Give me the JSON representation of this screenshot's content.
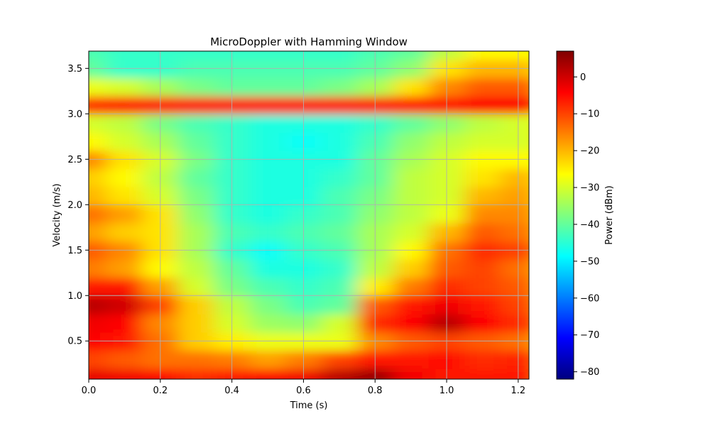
{
  "chart_data": {
    "type": "heatmap",
    "title": "MicroDoppler with Hamming Window",
    "xlabel": "Time (s)",
    "ylabel": "Velocity (m/s)",
    "colorbar_label": "Power (dBm)",
    "colormap": "jet",
    "xlim": [
      0.0,
      1.23
    ],
    "ylim": [
      0.08,
      3.69
    ],
    "clim": [
      -82,
      7
    ],
    "grid": true,
    "x_ticks": [
      0.0,
      0.2,
      0.4,
      0.6,
      0.8,
      1.0,
      1.2
    ],
    "x_tick_labels": [
      "0.0",
      "0.2",
      "0.4",
      "0.6",
      "0.8",
      "1.0",
      "1.2"
    ],
    "y_ticks": [
      0.5,
      1.0,
      1.5,
      2.0,
      2.5,
      3.0,
      3.5
    ],
    "y_tick_labels": [
      "0.5",
      "1.0",
      "1.5",
      "2.0",
      "2.5",
      "3.0",
      "3.5"
    ],
    "colorbar_ticks": [
      0,
      -10,
      -20,
      -30,
      -40,
      -50,
      -60,
      -70,
      -80
    ],
    "colorbar_tick_labels": [
      "0",
      "−10",
      "−20",
      "−30",
      "−40",
      "−50",
      "−60",
      "−70",
      "−80"
    ],
    "time": [
      0.0,
      0.1,
      0.2,
      0.3,
      0.4,
      0.5,
      0.6,
      0.7,
      0.8,
      0.9,
      1.0,
      1.1,
      1.2
    ],
    "velocity": [
      0.1,
      0.3,
      0.5,
      0.7,
      0.9,
      1.1,
      1.3,
      1.5,
      1.7,
      1.9,
      2.1,
      2.3,
      2.5,
      2.7,
      2.9,
      3.1,
      3.3,
      3.5,
      3.7
    ],
    "power_dbm": [
      [
        -2,
        -3,
        -4,
        -8,
        -6,
        -4,
        -3,
        2,
        5,
        -3,
        -6,
        -6,
        -6
      ],
      [
        -10,
        -12,
        -14,
        -14,
        -15,
        -18,
        -15,
        -10,
        -6,
        -6,
        -5,
        -8,
        -7
      ],
      [
        -4,
        -6,
        -14,
        -22,
        -25,
        -28,
        -28,
        -28,
        -16,
        -12,
        -10,
        -12,
        -14
      ],
      [
        -3,
        -4,
        -16,
        -22,
        -30,
        -35,
        -36,
        -30,
        -8,
        -4,
        2,
        -4,
        -8
      ],
      [
        2,
        0,
        -10,
        -22,
        -32,
        -38,
        -42,
        -40,
        -12,
        -6,
        -3,
        -6,
        -10
      ],
      [
        -6,
        -6,
        -18,
        -30,
        -38,
        -42,
        -44,
        -42,
        -25,
        -15,
        -8,
        -10,
        -12
      ],
      [
        -15,
        -18,
        -26,
        -32,
        -40,
        -46,
        -46,
        -44,
        -32,
        -22,
        -12,
        -10,
        -14
      ],
      [
        -12,
        -16,
        -24,
        -34,
        -44,
        -48,
        -44,
        -42,
        -34,
        -26,
        -14,
        -8,
        -10
      ],
      [
        -18,
        -22,
        -24,
        -34,
        -42,
        -44,
        -42,
        -40,
        -34,
        -30,
        -20,
        -12,
        -14
      ],
      [
        -14,
        -18,
        -24,
        -36,
        -44,
        -46,
        -44,
        -42,
        -36,
        -32,
        -28,
        -16,
        -16
      ],
      [
        -20,
        -24,
        -30,
        -38,
        -44,
        -46,
        -46,
        -42,
        -38,
        -32,
        -30,
        -20,
        -18
      ],
      [
        -22,
        -26,
        -32,
        -40,
        -44,
        -46,
        -46,
        -44,
        -40,
        -32,
        -30,
        -24,
        -20
      ],
      [
        -16,
        -24,
        -30,
        -38,
        -44,
        -46,
        -46,
        -46,
        -40,
        -34,
        -30,
        -26,
        -26
      ],
      [
        -26,
        -30,
        -34,
        -40,
        -44,
        -46,
        -48,
        -46,
        -42,
        -36,
        -32,
        -30,
        -30
      ],
      [
        -30,
        -32,
        -38,
        -42,
        -44,
        -46,
        -46,
        -46,
        -44,
        -40,
        -36,
        -32,
        -30
      ],
      [
        -8,
        -6,
        -6,
        -6,
        -6,
        -6,
        -6,
        -6,
        -6,
        -6,
        -6,
        -4,
        -4
      ],
      [
        -28,
        -30,
        -34,
        -38,
        -40,
        -40,
        -40,
        -38,
        -34,
        -24,
        -16,
        -12,
        -12
      ],
      [
        -40,
        -44,
        -44,
        -42,
        -42,
        -42,
        -42,
        -42,
        -40,
        -36,
        -24,
        -20,
        -20
      ],
      [
        -42,
        -44,
        -44,
        -44,
        -44,
        -44,
        -44,
        -44,
        -42,
        -40,
        -32,
        -26,
        -26
      ]
    ],
    "colors": {
      "grid": "#b0b0b0",
      "jet": [
        "#00007f",
        "#0000ff",
        "#007fff",
        "#00ffff",
        "#7fff7f",
        "#ffff00",
        "#ff7f00",
        "#ff0000",
        "#7f0000"
      ]
    }
  }
}
